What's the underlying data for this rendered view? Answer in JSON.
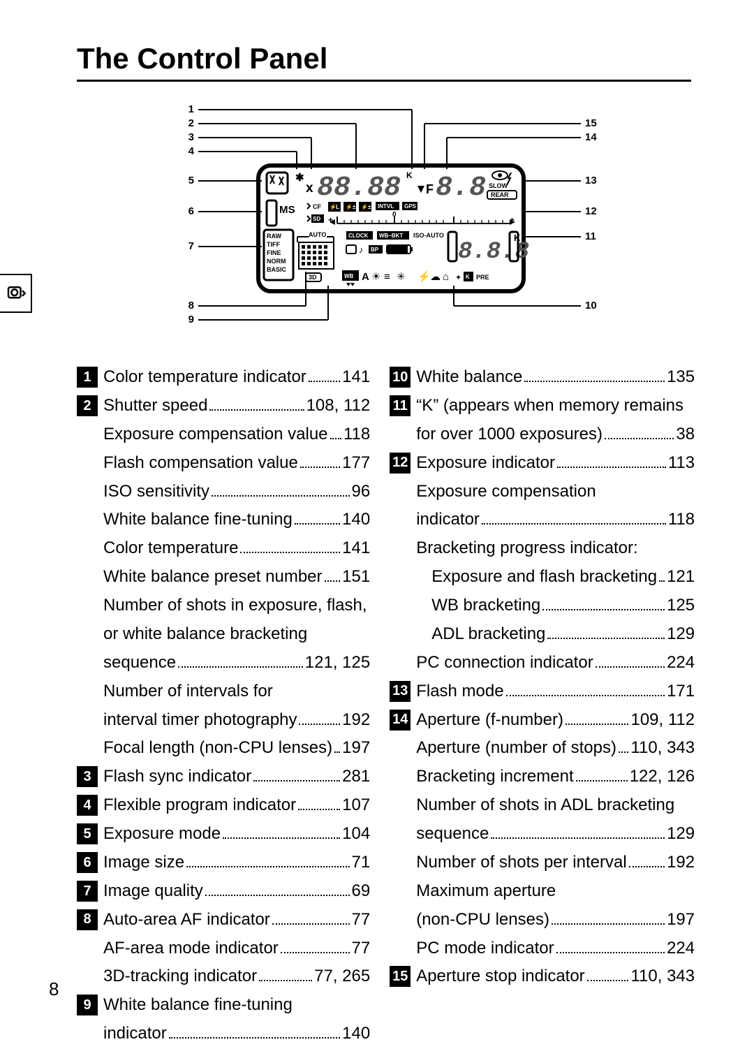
{
  "page": {
    "title": "The Control Panel",
    "number": "8"
  },
  "diagram": {
    "left_callouts": [
      "1",
      "2",
      "3",
      "4",
      "5",
      "6",
      "7",
      "8",
      "9"
    ],
    "right_callouts": [
      "15",
      "14",
      "13",
      "12",
      "11",
      "10"
    ],
    "lcd": {
      "big_digits": "88.88",
      "f_digits": "8.8",
      "x_label": "x",
      "k_small": "K",
      "f_label": "F",
      "slow": "SLOW",
      "rear": "REAR",
      "ms": "M S",
      "cf": "CF",
      "sd": "SD",
      "intvl": "INTVL",
      "gps": "GPS",
      "plus_l": "+",
      "plus_r": "+",
      "zero": "0",
      "quality": [
        "RAW",
        "TIFF",
        "FINE",
        "NORM",
        "BASIC"
      ],
      "auto": "AUTO",
      "three_d": "3D",
      "clock": "CLOCK",
      "wb_bkt": "WB–BKT",
      "iso_auto": "ISO-AUTO",
      "small_digits": "8.8.8",
      "k_right": "K",
      "wb": "WB",
      "a_label": "A",
      "pre": "PRE",
      "k_box": "K",
      "bp": "BP",
      "sync_x": "x",
      "flex_star": "✱",
      "mode_box": "",
      "l_label": "L"
    }
  },
  "list": {
    "left": [
      {
        "num": "1",
        "lines": [
          {
            "label": "Color temperature indicator",
            "pg": "141"
          }
        ]
      },
      {
        "num": "2",
        "lines": [
          {
            "label": "Shutter speed",
            "pg": "108, 112"
          },
          {
            "label": "Exposure compensation value",
            "pg": "118"
          },
          {
            "label": "Flash compensation value",
            "pg": "177"
          },
          {
            "label": "ISO sensitivity",
            "pg": "96"
          },
          {
            "label": "White balance fine-tuning",
            "pg": "140"
          },
          {
            "label": "Color temperature",
            "pg": "141"
          },
          {
            "label": "White balance preset number",
            "pg": "151"
          },
          {
            "textonly": "Number of shots in exposure, flash,"
          },
          {
            "textonly": "or white balance bracketing"
          },
          {
            "label": "sequence",
            "pg": "121, 125"
          },
          {
            "textonly": "Number of intervals for"
          },
          {
            "label": "interval timer photography",
            "pg": "192"
          },
          {
            "label": "Focal length (non-CPU lenses)",
            "pg": "197"
          }
        ]
      },
      {
        "num": "3",
        "lines": [
          {
            "label": "Flash sync indicator",
            "pg": "281"
          }
        ]
      },
      {
        "num": "4",
        "lines": [
          {
            "label": "Flexible program indicator",
            "pg": "107"
          }
        ]
      },
      {
        "num": "5",
        "lines": [
          {
            "label": "Exposure mode",
            "pg": "104"
          }
        ]
      },
      {
        "num": "6",
        "lines": [
          {
            "label": "Image size",
            "pg": "71"
          }
        ]
      },
      {
        "num": "7",
        "lines": [
          {
            "label": "Image quality",
            "pg": "69"
          }
        ]
      },
      {
        "num": "8",
        "lines": [
          {
            "label": "Auto-area AF indicator",
            "pg": "77"
          },
          {
            "label": "AF-area mode indicator",
            "pg": "77"
          },
          {
            "label": "3D-tracking indicator",
            "pg": "77, 265"
          }
        ]
      },
      {
        "num": "9",
        "lines": [
          {
            "textonly": "White balance fine-tuning"
          },
          {
            "label": "indicator",
            "pg": "140"
          }
        ]
      }
    ],
    "right": [
      {
        "num": "10",
        "lines": [
          {
            "label": "White balance",
            "pg": "135"
          }
        ]
      },
      {
        "num": "11",
        "lines": [
          {
            "textonly": "“K” (appears when memory remains"
          },
          {
            "label": "for over 1000 exposures)",
            "pg": "38"
          }
        ]
      },
      {
        "num": "12",
        "lines": [
          {
            "label": "Exposure indicator",
            "pg": "113"
          },
          {
            "textonly": "Exposure compensation"
          },
          {
            "label": "indicator",
            "pg": "118"
          },
          {
            "textonly": "Bracketing progress indicator:"
          },
          {
            "label": "Exposure and flash bracketing",
            "pg": "121",
            "indent": true
          },
          {
            "label": "WB bracketing",
            "pg": "125",
            "indent": true
          },
          {
            "label": "ADL bracketing",
            "pg": "129",
            "indent": true
          },
          {
            "label": "PC connection indicator",
            "pg": "224"
          }
        ]
      },
      {
        "num": "13",
        "lines": [
          {
            "label": "Flash mode",
            "pg": "171"
          }
        ]
      },
      {
        "num": "14",
        "lines": [
          {
            "label": "Aperture (f-number)",
            "pg": "109, 112"
          },
          {
            "label": "Aperture (number of stops)",
            "pg": "110, 343"
          },
          {
            "label": "Bracketing increment",
            "pg": "122, 126"
          },
          {
            "textonly": "Number of shots in ADL bracketing"
          },
          {
            "label": "sequence",
            "pg": "129"
          },
          {
            "label": "Number of shots per interval",
            "pg": "192"
          },
          {
            "textonly": "Maximum aperture"
          },
          {
            "label": "(non-CPU lenses)",
            "pg": "197"
          },
          {
            "label": "PC mode indicator",
            "pg": "224"
          }
        ]
      },
      {
        "num": "15",
        "lines": [
          {
            "label": "Aperture stop indicator",
            "pg": "110, 343"
          }
        ]
      }
    ]
  }
}
